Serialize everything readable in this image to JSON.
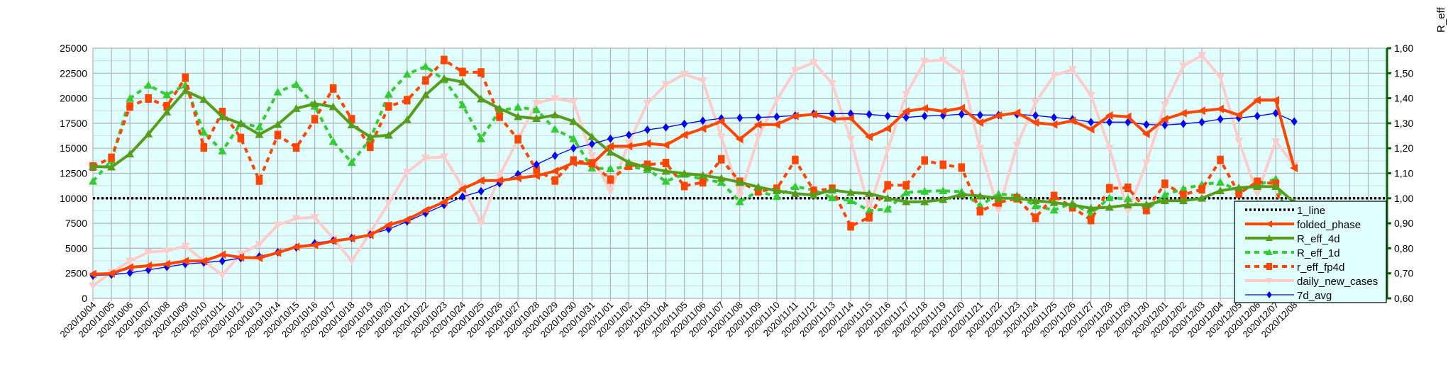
{
  "chart_data": {
    "type": "line",
    "title": "",
    "xlabel": "",
    "ylabel_left": "",
    "ylabel_right": "R_eff",
    "ylim_left": [
      0,
      25000
    ],
    "ylim_right": [
      0.6,
      1.6
    ],
    "grid": true,
    "legend_position": "bottom-right",
    "yticks_left": [
      "0",
      "2500",
      "5000",
      "7500",
      "10000",
      "12500",
      "15000",
      "17500",
      "20000",
      "22500",
      "25000"
    ],
    "yticks_right": [
      "0,60",
      "0,70",
      "0,80",
      "0,90",
      "1,00",
      "1,10",
      "1,20",
      "1,30",
      "1,40",
      "1,50",
      "1,60"
    ],
    "categories": [
      "2020/10/04",
      "2020/10/05",
      "2020/10/06",
      "2020/10/07",
      "2020/10/08",
      "2020/10/09",
      "2020/10/10",
      "2020/10/11",
      "2020/10/12",
      "2020/10/13",
      "2020/10/14",
      "2020/10/15",
      "2020/10/16",
      "2020/10/17",
      "2020/10/18",
      "2020/10/19",
      "2020/10/20",
      "2020/10/21",
      "2020/10/22",
      "2020/10/23",
      "2020/10/24",
      "2020/10/25",
      "2020/10/26",
      "2020/10/27",
      "2020/10/28",
      "2020/10/29",
      "2020/10/30",
      "2020/10/31",
      "2020/11/01",
      "2020/11/02",
      "2020/11/03",
      "2020/11/04",
      "2020/11/05",
      "2020/11/06",
      "2020/11/07",
      "2020/11/08",
      "2020/11/09",
      "2020/11/10",
      "2020/11/11",
      "2020/11/12",
      "2020/11/13",
      "2020/11/14",
      "2020/11/15",
      "2020/11/16",
      "2020/11/17",
      "2020/11/18",
      "2020/11/19",
      "2020/11/20",
      "2020/11/21",
      "2020/11/22",
      "2020/11/23",
      "2020/11/24",
      "2020/11/25",
      "2020/11/26",
      "2020/11/27",
      "2020/11/28",
      "2020/11/29",
      "2020/11/30",
      "2020/12/01",
      "2020/12/02",
      "2020/12/03",
      "2020/12/04",
      "2020/12/05",
      "2020/12/06",
      "2020/12/07",
      "2020/12/08"
    ],
    "series": [
      {
        "name": "1_line",
        "axis": "right",
        "color": "#000000",
        "style": "dotted",
        "marker": "none",
        "constant": 1.0
      },
      {
        "name": "folded_phase",
        "axis": "left",
        "color": "#ff4500",
        "style": "solid",
        "marker": "triangle-left",
        "values": [
          2430,
          2480,
          3100,
          3260,
          3430,
          3730,
          3730,
          4370,
          4090,
          4040,
          4560,
          5150,
          5320,
          5740,
          5980,
          6330,
          7330,
          7870,
          8810,
          9640,
          10940,
          11770,
          11770,
          12010,
          12250,
          12720,
          13550,
          13430,
          15200,
          15200,
          15480,
          15320,
          16330,
          16970,
          17680,
          15910,
          17370,
          17370,
          18220,
          18390,
          17910,
          17990,
          16140,
          16970,
          18690,
          18980,
          18690,
          19020,
          17560,
          18270,
          18550,
          17560,
          17370,
          17750,
          16900,
          18270,
          18150,
          16430,
          17910,
          18500,
          18740,
          18930,
          18320,
          19800,
          19800,
          13020
        ]
      },
      {
        "name": "R_eff_4d",
        "axis": "right",
        "color": "#579d1c",
        "style": "solid",
        "marker": "triangle-up",
        "values": [
          1.127,
          1.125,
          1.177,
          1.257,
          1.345,
          1.43,
          1.395,
          1.326,
          1.298,
          1.255,
          1.295,
          1.359,
          1.378,
          1.366,
          1.293,
          1.246,
          1.252,
          1.314,
          1.413,
          1.479,
          1.465,
          1.397,
          1.359,
          1.326,
          1.319,
          1.333,
          1.307,
          1.246,
          1.184,
          1.143,
          1.123,
          1.108,
          1.099,
          1.092,
          1.08,
          1.064,
          1.045,
          1.03,
          1.019,
          1.013,
          1.033,
          1.023,
          1.019,
          1.0,
          0.986,
          0.986,
          0.995,
          1.015,
          1.009,
          1.0,
          1.0,
          0.99,
          0.983,
          0.973,
          0.96,
          0.964,
          0.973,
          0.975,
          0.99,
          0.99,
          1.0,
          1.03,
          1.042,
          1.047,
          1.047,
          0.983
        ]
      },
      {
        "name": "R_eff_1d",
        "axis": "right",
        "color": "#33cc33",
        "style": "dashed",
        "marker": "triangle-up",
        "values": [
          1.068,
          1.151,
          1.399,
          1.452,
          1.414,
          1.453,
          1.264,
          1.189,
          1.3,
          1.285,
          1.425,
          1.455,
          1.368,
          1.227,
          1.143,
          1.236,
          1.416,
          1.496,
          1.527,
          1.474,
          1.373,
          1.238,
          1.35,
          1.364,
          1.354,
          1.276,
          1.238,
          1.121,
          1.118,
          1.127,
          1.115,
          1.068,
          1.096,
          1.075,
          1.064,
          0.986,
          1.028,
          1.007,
          1.047,
          1.033,
          1.002,
          0.99,
          0.95,
          0.957,
          1.023,
          1.028,
          1.03,
          1.026,
          0.971,
          1.017,
          1.011,
          0.97,
          0.953,
          0.981,
          0.938,
          1.002,
          0.998,
          0.953,
          1.014,
          1.038,
          1.055,
          1.064,
          1.03,
          1.052,
          1.077,
          0.82
        ]
      },
      {
        "name": "r_eff_fp4d",
        "axis": "right",
        "color": "#ff4500",
        "style": "dashed",
        "marker": "bowtie",
        "values": [
          1.127,
          1.162,
          1.367,
          1.399,
          1.368,
          1.482,
          1.203,
          1.345,
          1.241,
          1.071,
          1.253,
          1.203,
          1.316,
          1.439,
          1.316,
          1.206,
          1.367,
          1.392,
          1.471,
          1.553,
          1.505,
          1.503,
          1.326,
          1.236,
          1.113,
          1.071,
          1.151,
          1.14,
          1.075,
          1.13,
          1.134,
          1.141,
          1.049,
          1.064,
          1.156,
          1.066,
          1.028,
          1.038,
          1.153,
          1.03,
          1.038,
          0.888,
          0.924,
          1.052,
          1.052,
          1.151,
          1.134,
          1.123,
          0.948,
          0.983,
          1.0,
          0.922,
          1.009,
          0.964,
          0.913,
          1.04,
          1.042,
          0.953,
          1.058,
          1.014,
          1.036,
          1.153,
          1.019,
          1.066,
          1.058,
          0.69
        ]
      },
      {
        "name": "daily_new_cases",
        "axis": "left",
        "color": "#ffcccc",
        "style": "solid",
        "marker": "triangle-down",
        "values": [
          1250,
          2600,
          3730,
          4610,
          4750,
          5220,
          3730,
          2320,
          4440,
          5390,
          7330,
          7990,
          8100,
          5980,
          3730,
          6570,
          9520,
          12600,
          14020,
          14140,
          11140,
          7520,
          12250,
          15910,
          19500,
          19970,
          19640,
          14250,
          10710,
          15550,
          19500,
          21390,
          22400,
          21760,
          16140,
          10240,
          16140,
          19800,
          22800,
          23580,
          21460,
          15910,
          8940,
          14840,
          20400,
          23700,
          23820,
          22520,
          15010,
          8820,
          15320,
          19570,
          22280,
          22870,
          20280,
          15010,
          8700,
          13540,
          19340,
          23230,
          24290,
          22100,
          15720,
          10470,
          15670,
          13310
        ]
      },
      {
        "name": "7d_avg",
        "axis": "left",
        "color": "#0000ff",
        "style": "solid-thin",
        "marker": "diamond",
        "values": [
          2270,
          2360,
          2550,
          2840,
          3140,
          3430,
          3570,
          3730,
          4020,
          4200,
          4610,
          5080,
          5510,
          5790,
          6030,
          6380,
          6920,
          7680,
          8510,
          9330,
          10160,
          10700,
          11490,
          12410,
          13380,
          14250,
          15010,
          15430,
          15950,
          16330,
          16850,
          17090,
          17440,
          17750,
          17990,
          18030,
          18080,
          18150,
          18270,
          18460,
          18460,
          18460,
          18390,
          18220,
          18080,
          18220,
          18270,
          18400,
          18320,
          18320,
          18390,
          18270,
          18080,
          17910,
          17610,
          17610,
          17610,
          17370,
          17320,
          17440,
          17610,
          17910,
          18030,
          18220,
          18500,
          17680
        ]
      }
    ]
  },
  "colors": {
    "plot_bg": "#e0ffff",
    "right_axis": "#006400",
    "grid_major": "#b3b3b3",
    "grid_minor": "#dddddd"
  }
}
